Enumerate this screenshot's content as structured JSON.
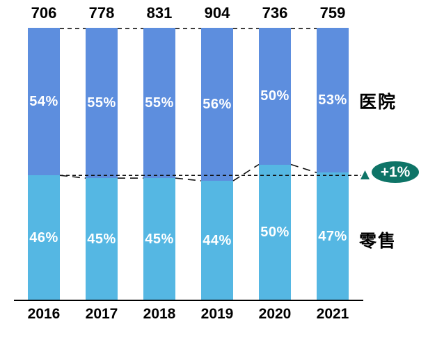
{
  "chart_data": {
    "type": "bar",
    "subtype": "100-percent-stacked-column",
    "categories": [
      "2016",
      "2017",
      "2018",
      "2019",
      "2020",
      "2021"
    ],
    "totals": [
      706,
      778,
      831,
      904,
      736,
      759
    ],
    "series": [
      {
        "name": "零售",
        "position": "bottom",
        "values": [
          46,
          45,
          45,
          44,
          50,
          47
        ],
        "labels": [
          "46%",
          "45%",
          "45%",
          "44%",
          "50%",
          "47%"
        ],
        "color": "#55B7E3"
      },
      {
        "name": "医院",
        "position": "top",
        "values": [
          54,
          55,
          55,
          56,
          50,
          53
        ],
        "labels": [
          "54%",
          "55%",
          "55%",
          "56%",
          "50%",
          "53%"
        ],
        "color": "#5D8EDE"
      }
    ],
    "annotation": {
      "text": "+1%",
      "color": "#0E7467",
      "marker": "triangle-up"
    },
    "connector_line_color": "#111111",
    "value_label_color": "#FFFFFF",
    "axis_line_color": "#000000",
    "gridlines": false,
    "legend_position": "right",
    "xlabel": "",
    "ylabel": ""
  }
}
